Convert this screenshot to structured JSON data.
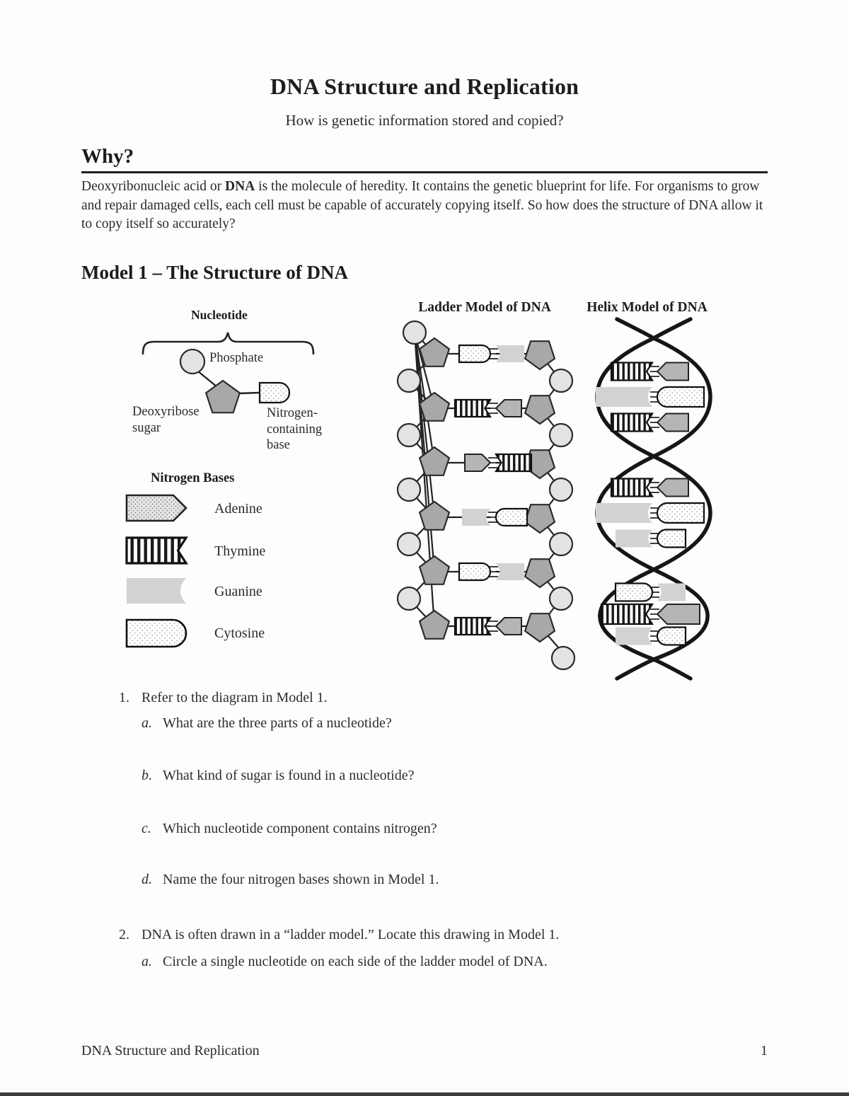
{
  "header": {
    "title": "DNA Structure and Replication",
    "subtitle": "How is genetic information stored and copied?"
  },
  "why": {
    "heading": "Why?",
    "text_before": "Deoxyribonucleic acid or ",
    "text_bold": "DNA",
    "text_after": " is the molecule of heredity. It contains the genetic blueprint for life. For organisms to grow and repair damaged cells, each cell must be capable of accurately copying itself. So how does the structure of DNA allow it to copy itself so accurately?"
  },
  "model1": {
    "heading": "Model 1 – The Structure of DNA"
  },
  "nucleotide": {
    "label": "Nucleotide",
    "phosphate_label": "Phosphate",
    "sugar_label": "Deoxyribose sugar",
    "base_label": "Nitrogen-containing base"
  },
  "legend": {
    "heading": "Nitrogen Bases",
    "items": [
      {
        "base": "A",
        "label": "Adenine"
      },
      {
        "base": "T",
        "label": "Thymine"
      },
      {
        "base": "G",
        "label": "Guanine"
      },
      {
        "base": "C",
        "label": "Cytosine"
      }
    ]
  },
  "ladder": {
    "title": "Ladder Model of DNA",
    "rungs": [
      {
        "left": "C",
        "right": "G"
      },
      {
        "left": "T",
        "right": "A"
      },
      {
        "left": "A",
        "right": "T"
      },
      {
        "left": "G",
        "right": "C"
      },
      {
        "left": "C",
        "right": "G"
      },
      {
        "left": "T",
        "right": "A"
      }
    ]
  },
  "helix": {
    "title": "Helix Model of DNA",
    "sections": [
      [
        {
          "left": "T",
          "right": "A"
        },
        {
          "left": "G",
          "right": "C"
        },
        {
          "left": "T",
          "right": "A"
        }
      ],
      [
        {
          "left": "T",
          "right": "A"
        },
        {
          "left": "G",
          "right": "C"
        },
        {
          "left": "G",
          "right": "C"
        }
      ],
      [
        {
          "left": "C",
          "right": "G"
        },
        {
          "left": "T",
          "right": "A"
        },
        {
          "left": "G",
          "right": "C"
        }
      ]
    ]
  },
  "questions": [
    {
      "number": "1.",
      "text": "Refer to the diagram in Model 1.",
      "subs": [
        {
          "letter": "a.",
          "text": "What are the three parts of a nucleotide?"
        },
        {
          "letter": "b.",
          "text": "What kind of sugar is found in a nucleotide?"
        },
        {
          "letter": "c.",
          "text": "Which nucleotide component contains nitrogen?"
        },
        {
          "letter": "d.",
          "text": "Name the four nitrogen bases shown in Model 1."
        }
      ]
    },
    {
      "number": "2.",
      "text": "DNA is often drawn in a “ladder model.” Locate this drawing in Model 1.",
      "subs": [
        {
          "letter": "a.",
          "text": "Circle a single nucleotide on each side of the ladder model of DNA."
        }
      ]
    }
  ],
  "footer": {
    "left": "DNA Structure and Replication",
    "page_number": "1"
  },
  "colors": {
    "phosphate_fill": "#e3e3e3",
    "sugar_fill": "#a8a8a8",
    "guanine_fill": "#d2d2d2",
    "adenine_fill": "#b5b5b5",
    "outline": "#222222",
    "helix_strand": "#161616"
  }
}
